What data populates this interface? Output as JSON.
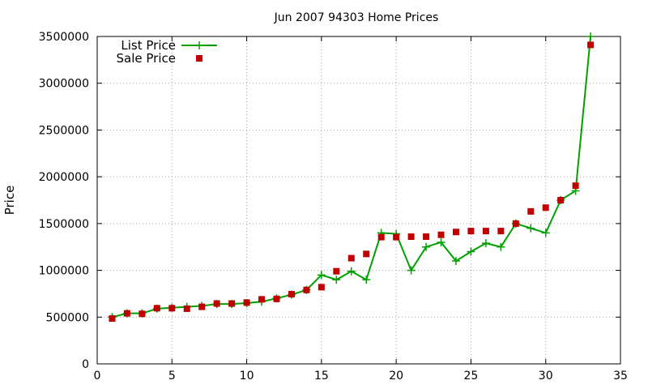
{
  "chart_data": {
    "type": "line",
    "title": "Jun 2007 94303 Home Prices",
    "xlabel": "",
    "ylabel": "Price",
    "xlim": [
      0,
      35
    ],
    "ylim": [
      0,
      3500000
    ],
    "xticks": [
      0,
      5,
      10,
      15,
      20,
      25,
      30,
      35
    ],
    "yticks": [
      0,
      500000,
      1000000,
      1500000,
      2000000,
      2500000,
      3000000,
      3500000
    ],
    "grid": true,
    "legend_position": "top-left",
    "series": [
      {
        "name": "List Price",
        "style": "lines+points",
        "marker": "plus",
        "color": "#00a000",
        "x": [
          1,
          2,
          3,
          4,
          5,
          6,
          7,
          8,
          9,
          10,
          11,
          12,
          13,
          14,
          15,
          16,
          17,
          18,
          19,
          20,
          21,
          22,
          23,
          24,
          25,
          26,
          27,
          28,
          29,
          30,
          31,
          32,
          33
        ],
        "y": [
          500000,
          540000,
          540000,
          590000,
          600000,
          610000,
          620000,
          640000,
          640000,
          650000,
          665000,
          700000,
          740000,
          790000,
          950000,
          900000,
          990000,
          900000,
          1400000,
          1390000,
          1000000,
          1250000,
          1300000,
          1100000,
          1200000,
          1290000,
          1250000,
          1500000,
          1450000,
          1400000,
          1750000,
          1850000,
          3500000
        ]
      },
      {
        "name": "Sale Price",
        "style": "points",
        "marker": "square",
        "color": "#c00000",
        "x": [
          1,
          2,
          3,
          4,
          5,
          6,
          7,
          8,
          9,
          10,
          11,
          12,
          13,
          14,
          15,
          16,
          17,
          18,
          19,
          20,
          21,
          22,
          23,
          24,
          25,
          26,
          27,
          28,
          29,
          30,
          31,
          32,
          33
        ],
        "y": [
          485000,
          540000,
          535000,
          595000,
          595000,
          590000,
          610000,
          645000,
          645000,
          655000,
          690000,
          695000,
          745000,
          790000,
          820000,
          990000,
          1130000,
          1175000,
          1355000,
          1355000,
          1360000,
          1360000,
          1380000,
          1410000,
          1420000,
          1420000,
          1420000,
          1500000,
          1630000,
          1670000,
          1750000,
          1905000,
          3410000
        ]
      }
    ]
  }
}
